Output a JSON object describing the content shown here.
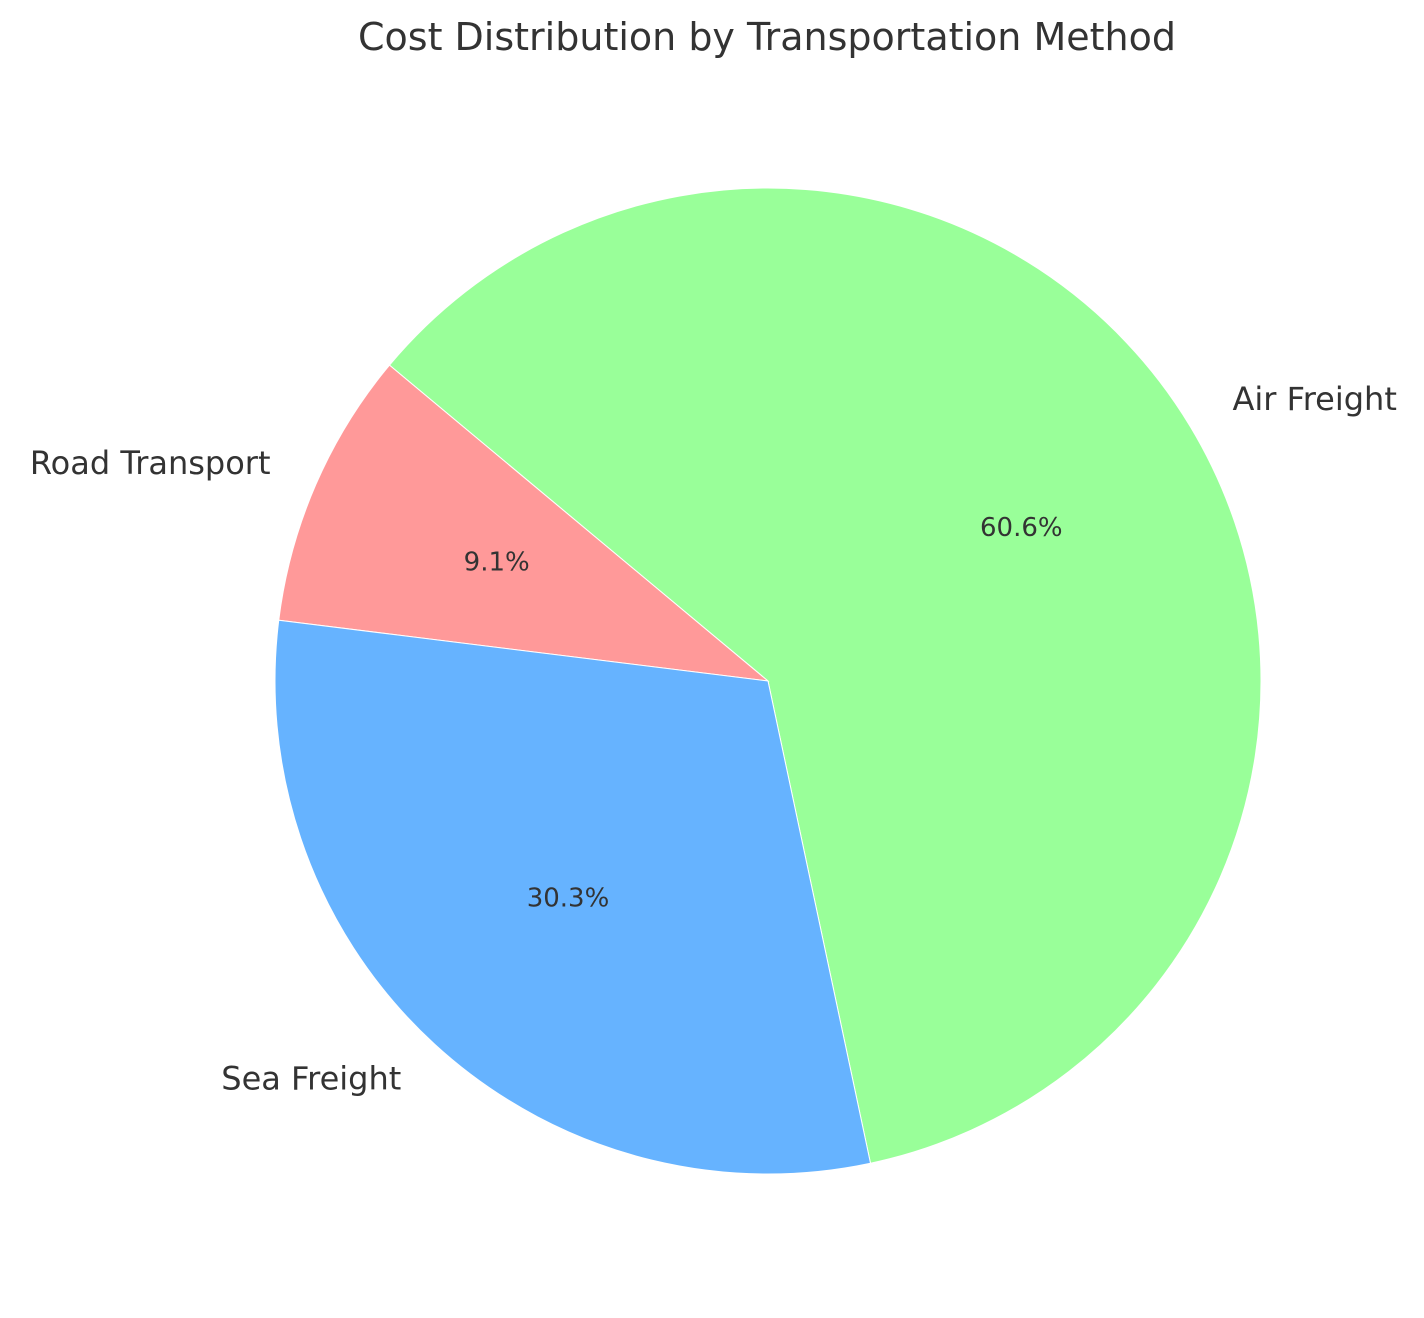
{
  "chart_data": {
    "type": "pie",
    "title": "Cost Distribution by Transportation Method",
    "slices": [
      {
        "label": "Air Freight",
        "value": 60.6,
        "pct_label": "60.6%",
        "color": "#99ff99"
      },
      {
        "label": "Road Transport",
        "value": 9.1,
        "pct_label": "9.1%",
        "color": "#ff9999"
      },
      {
        "label": "Sea Freight",
        "value": 30.3,
        "pct_label": "30.3%",
        "color": "#66b3ff"
      }
    ],
    "start_angle_deg": -78,
    "direction": "counterclockwise",
    "legend": "none"
  }
}
